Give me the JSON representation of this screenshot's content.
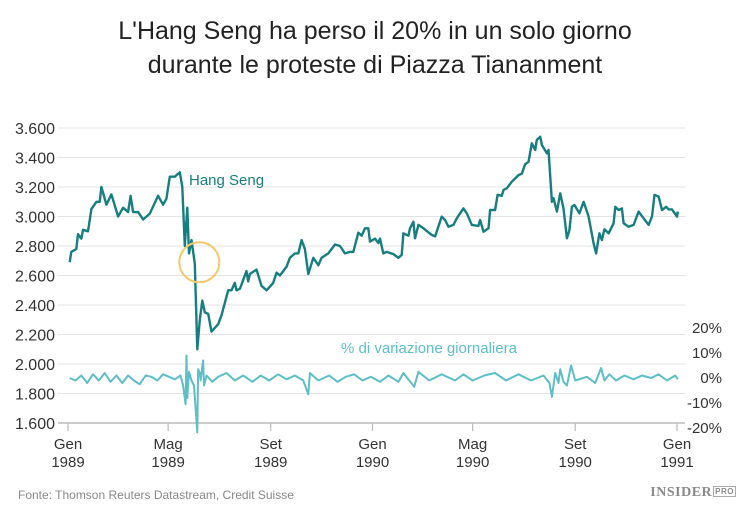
{
  "title_line1": "L'Hang Seng ha perso il 20% in un solo giorno",
  "title_line2": "durante le proteste di Piazza Tiananment",
  "source": "Fonte: Thomson Reuters Datastream, Credit Suisse",
  "logo": {
    "main": "INSIDER",
    "sub": "PRO"
  },
  "colors": {
    "hang_seng": "#177e80",
    "pct_change": "#5dbec7",
    "annotation_circle": "#f5c86a",
    "grid": "#e3e3e3"
  },
  "chart_data": {
    "type": "line",
    "title": "L'Hang Seng ha perso il 20% in un solo giorno durante le proteste di Piazza Tiananment",
    "xlim": [
      "1989-01-01",
      "1991-01-01"
    ],
    "x_ticks": [
      {
        "date": "1989-01-01",
        "month": "Gen",
        "year": "1989"
      },
      {
        "date": "1989-05-01",
        "month": "Mag",
        "year": "1989"
      },
      {
        "date": "1989-09-01",
        "month": "Set",
        "year": "1989"
      },
      {
        "date": "1990-01-01",
        "month": "Gen",
        "year": "1990"
      },
      {
        "date": "1990-05-01",
        "month": "Mag",
        "year": "1990"
      },
      {
        "date": "1990-09-01",
        "month": "Set",
        "year": "1990"
      },
      {
        "date": "1991-01-01",
        "month": "Gen",
        "year": "1991"
      }
    ],
    "y_left": {
      "ylim": [
        1600,
        3600
      ],
      "ticks": [
        "3.600",
        "3.400",
        "3.200",
        "3.000",
        "2.800",
        "2.600",
        "2.400",
        "2.200",
        "2.000",
        "1.800",
        "1.600"
      ],
      "tick_values": [
        3600,
        3400,
        3200,
        3000,
        2800,
        2600,
        2400,
        2200,
        2000,
        1800,
        1600
      ]
    },
    "y_right": {
      "ylim": [
        -20,
        20
      ],
      "ticks": [
        "20%",
        "10%",
        "0%",
        "-10%",
        "-20%"
      ],
      "tick_values": [
        20,
        10,
        0,
        -10,
        -20
      ]
    },
    "grid": true,
    "series": [
      {
        "name": "Hang Seng",
        "axis": "left",
        "points": [
          [
            "1989-01-03",
            2690
          ],
          [
            "1989-01-05",
            2760
          ],
          [
            "1989-01-11",
            2780
          ],
          [
            "1989-01-13",
            2880
          ],
          [
            "1989-01-17",
            2850
          ],
          [
            "1989-01-19",
            2910
          ],
          [
            "1989-01-25",
            2900
          ],
          [
            "1989-01-29",
            3050
          ],
          [
            "1989-02-04",
            3100
          ],
          [
            "1989-02-08",
            3100
          ],
          [
            "1989-02-10",
            3200
          ],
          [
            "1989-02-16",
            3080
          ],
          [
            "1989-02-22",
            3150
          ],
          [
            "1989-03-02",
            3000
          ],
          [
            "1989-03-08",
            3060
          ],
          [
            "1989-03-14",
            3030
          ],
          [
            "1989-03-17",
            3140
          ],
          [
            "1989-03-20",
            3030
          ],
          [
            "1989-03-26",
            3030
          ],
          [
            "1989-04-01",
            2980
          ],
          [
            "1989-04-09",
            3020
          ],
          [
            "1989-04-19",
            3140
          ],
          [
            "1989-04-25",
            3080
          ],
          [
            "1989-04-29",
            3120
          ],
          [
            "1989-05-03",
            3270
          ],
          [
            "1989-05-09",
            3270
          ],
          [
            "1989-05-15",
            3300
          ],
          [
            "1989-05-18",
            3200
          ],
          [
            "1989-05-21",
            2800
          ],
          [
            "1989-05-24",
            3060
          ],
          [
            "1989-05-26",
            2750
          ],
          [
            "1989-05-29",
            2840
          ],
          [
            "1989-06-02",
            2680
          ],
          [
            "1989-06-05",
            2100
          ],
          [
            "1989-06-08",
            2300
          ],
          [
            "1989-06-11",
            2430
          ],
          [
            "1989-06-14",
            2350
          ],
          [
            "1989-06-18",
            2340
          ],
          [
            "1989-06-22",
            2220
          ],
          [
            "1989-06-30",
            2270
          ],
          [
            "1989-07-04",
            2330
          ],
          [
            "1989-07-12",
            2500
          ],
          [
            "1989-07-16",
            2500
          ],
          [
            "1989-07-20",
            2550
          ],
          [
            "1989-07-22",
            2500
          ],
          [
            "1989-07-26",
            2510
          ],
          [
            "1989-08-03",
            2630
          ],
          [
            "1989-08-05",
            2560
          ],
          [
            "1989-08-07",
            2610
          ],
          [
            "1989-08-15",
            2640
          ],
          [
            "1989-08-21",
            2530
          ],
          [
            "1989-08-27",
            2500
          ],
          [
            "1989-09-04",
            2550
          ],
          [
            "1989-09-08",
            2620
          ],
          [
            "1989-09-12",
            2600
          ],
          [
            "1989-09-20",
            2660
          ],
          [
            "1989-09-24",
            2720
          ],
          [
            "1989-09-30",
            2750
          ],
          [
            "1989-10-04",
            2750
          ],
          [
            "1989-10-08",
            2840
          ],
          [
            "1989-10-12",
            2780
          ],
          [
            "1989-10-16",
            2610
          ],
          [
            "1989-10-22",
            2720
          ],
          [
            "1989-10-28",
            2670
          ],
          [
            "1989-11-01",
            2720
          ],
          [
            "1989-11-09",
            2750
          ],
          [
            "1989-11-17",
            2810
          ],
          [
            "1989-11-23",
            2800
          ],
          [
            "1989-11-29",
            2750
          ],
          [
            "1989-12-05",
            2760
          ],
          [
            "1989-12-09",
            2760
          ],
          [
            "1989-12-15",
            2890
          ],
          [
            "1989-12-19",
            2870
          ],
          [
            "1989-12-23",
            2920
          ],
          [
            "1989-12-27",
            2920
          ],
          [
            "1989-12-29",
            2830
          ],
          [
            "1990-01-04",
            2850
          ],
          [
            "1990-01-08",
            2820
          ],
          [
            "1990-01-10",
            2850
          ],
          [
            "1990-01-14",
            2750
          ],
          [
            "1990-01-18",
            2760
          ],
          [
            "1990-01-26",
            2745
          ],
          [
            "1990-02-01",
            2720
          ],
          [
            "1990-02-05",
            2740
          ],
          [
            "1990-02-07",
            2886
          ],
          [
            "1990-02-13",
            2870
          ],
          [
            "1990-02-15",
            2920
          ],
          [
            "1990-02-19",
            2965
          ],
          [
            "1990-02-21",
            2852
          ],
          [
            "1990-02-25",
            2943
          ],
          [
            "1990-03-03",
            2920
          ],
          [
            "1990-03-13",
            2875
          ],
          [
            "1990-03-17",
            2865
          ],
          [
            "1990-03-25",
            2999
          ],
          [
            "1990-03-29",
            2976
          ],
          [
            "1990-04-02",
            2931
          ],
          [
            "1990-04-08",
            2943
          ],
          [
            "1990-04-12",
            2988
          ],
          [
            "1990-04-20",
            3055
          ],
          [
            "1990-04-24",
            3022
          ],
          [
            "1990-04-30",
            2943
          ],
          [
            "1990-05-08",
            2936
          ],
          [
            "1990-05-10",
            2976
          ],
          [
            "1990-05-14",
            2897
          ],
          [
            "1990-05-20",
            2920
          ],
          [
            "1990-05-22",
            3044
          ],
          [
            "1990-05-28",
            3044
          ],
          [
            "1990-05-31",
            3147
          ],
          [
            "1990-06-05",
            3140
          ],
          [
            "1990-06-07",
            3180
          ],
          [
            "1990-06-11",
            3191
          ],
          [
            "1990-06-17",
            3236
          ],
          [
            "1990-06-25",
            3281
          ],
          [
            "1990-06-29",
            3290
          ],
          [
            "1990-07-03",
            3355
          ],
          [
            "1990-07-07",
            3370
          ],
          [
            "1990-07-11",
            3496
          ],
          [
            "1990-07-15",
            3451
          ],
          [
            "1990-07-17",
            3519
          ],
          [
            "1990-07-21",
            3541
          ],
          [
            "1990-07-23",
            3485
          ],
          [
            "1990-07-29",
            3428
          ],
          [
            "1990-07-31",
            3451
          ],
          [
            "1990-08-04",
            3100
          ],
          [
            "1990-08-06",
            3124
          ],
          [
            "1990-08-10",
            3033
          ],
          [
            "1990-08-14",
            3157
          ],
          [
            "1990-08-18",
            3055
          ],
          [
            "1990-08-22",
            2852
          ],
          [
            "1990-08-25",
            2908
          ],
          [
            "1990-08-28",
            3066
          ],
          [
            "1990-08-31",
            3078
          ],
          [
            "1990-09-06",
            3022
          ],
          [
            "1990-09-11",
            3100
          ],
          [
            "1990-09-17",
            2999
          ],
          [
            "1990-09-23",
            2818
          ],
          [
            "1990-09-26",
            2750
          ],
          [
            "1990-09-30",
            2886
          ],
          [
            "1990-10-03",
            2840
          ],
          [
            "1990-10-06",
            2913
          ],
          [
            "1990-10-11",
            2886
          ],
          [
            "1990-10-17",
            2954
          ],
          [
            "1990-10-19",
            3066
          ],
          [
            "1990-10-23",
            3044
          ],
          [
            "1990-10-27",
            3055
          ],
          [
            "1990-10-29",
            2954
          ],
          [
            "1990-11-04",
            2931
          ],
          [
            "1990-11-10",
            2943
          ],
          [
            "1990-11-16",
            3033
          ],
          [
            "1990-11-22",
            2988
          ],
          [
            "1990-11-28",
            2943
          ],
          [
            "1990-12-02",
            2999
          ],
          [
            "1990-12-05",
            3147
          ],
          [
            "1990-12-10",
            3135
          ],
          [
            "1990-12-14",
            3044
          ],
          [
            "1990-12-19",
            3066
          ],
          [
            "1990-12-22",
            3048
          ],
          [
            "1990-12-26",
            3048
          ],
          [
            "1991-01-01",
            2999
          ],
          [
            "1991-01-02",
            3033
          ]
        ]
      },
      {
        "name": "% di variazione giornaliera",
        "axis": "right",
        "points": [
          [
            "1989-01-03",
            0
          ],
          [
            "1989-01-10",
            -1
          ],
          [
            "1989-01-17",
            1
          ],
          [
            "1989-01-24",
            -2
          ],
          [
            "1989-01-31",
            1.5
          ],
          [
            "1989-02-07",
            -1
          ],
          [
            "1989-02-14",
            2
          ],
          [
            "1989-02-21",
            -1.5
          ],
          [
            "1989-02-28",
            1
          ],
          [
            "1989-03-07",
            -2
          ],
          [
            "1989-03-14",
            1
          ],
          [
            "1989-03-21",
            -1
          ],
          [
            "1989-03-28",
            -2.5
          ],
          [
            "1989-04-04",
            1
          ],
          [
            "1989-04-11",
            0.5
          ],
          [
            "1989-04-18",
            -1
          ],
          [
            "1989-04-25",
            1.5
          ],
          [
            "1989-05-02",
            0.5
          ],
          [
            "1989-05-09",
            -0.5
          ],
          [
            "1989-05-16",
            1
          ],
          [
            "1989-05-19",
            -3
          ],
          [
            "1989-05-22",
            -10.5
          ],
          [
            "1989-05-23",
            9
          ],
          [
            "1989-05-24",
            -8
          ],
          [
            "1989-05-26",
            2.5
          ],
          [
            "1989-05-29",
            -1
          ],
          [
            "1989-06-01",
            -3
          ],
          [
            "1989-06-05",
            -21.7
          ],
          [
            "1989-06-06",
            3.5
          ],
          [
            "1989-06-08",
            2
          ],
          [
            "1989-06-09",
            -1
          ],
          [
            "1989-06-12",
            7
          ],
          [
            "1989-06-13",
            -3
          ],
          [
            "1989-06-16",
            1
          ],
          [
            "1989-06-23",
            -1.5
          ],
          [
            "1989-06-30",
            0.5
          ],
          [
            "1989-07-10",
            2
          ],
          [
            "1989-07-20",
            -1
          ],
          [
            "1989-07-30",
            1
          ],
          [
            "1989-08-10",
            -1.5
          ],
          [
            "1989-08-20",
            1
          ],
          [
            "1989-08-30",
            -1
          ],
          [
            "1989-09-10",
            1.5
          ],
          [
            "1989-09-20",
            -0.5
          ],
          [
            "1989-09-30",
            1
          ],
          [
            "1989-10-10",
            -1
          ],
          [
            "1989-10-16",
            -6.5
          ],
          [
            "1989-10-18",
            2
          ],
          [
            "1989-10-28",
            -1
          ],
          [
            "1989-11-10",
            1
          ],
          [
            "1989-11-20",
            -1.5
          ],
          [
            "1989-11-30",
            0.5
          ],
          [
            "1989-12-10",
            1.5
          ],
          [
            "1989-12-20",
            -1
          ],
          [
            "1989-12-30",
            0.5
          ],
          [
            "1990-01-10",
            -1.5
          ],
          [
            "1990-01-20",
            1
          ],
          [
            "1990-02-01",
            -1.5
          ],
          [
            "1990-02-07",
            2
          ],
          [
            "1990-02-20",
            -3.5
          ],
          [
            "1990-02-25",
            2.5
          ],
          [
            "1990-03-10",
            -1
          ],
          [
            "1990-03-25",
            1.5
          ],
          [
            "1990-04-10",
            -1
          ],
          [
            "1990-04-20",
            1.5
          ],
          [
            "1990-05-01",
            -1
          ],
          [
            "1990-05-15",
            1
          ],
          [
            "1990-05-28",
            2
          ],
          [
            "1990-06-10",
            -1
          ],
          [
            "1990-06-25",
            1.5
          ],
          [
            "1990-07-10",
            -1
          ],
          [
            "1990-07-25",
            1
          ],
          [
            "1990-08-01",
            -2
          ],
          [
            "1990-08-04",
            -7.5
          ],
          [
            "1990-08-08",
            2
          ],
          [
            "1990-08-12",
            -2
          ],
          [
            "1990-08-14",
            3.5
          ],
          [
            "1990-08-18",
            -1.5
          ],
          [
            "1990-08-22",
            -3
          ],
          [
            "1990-08-27",
            5
          ],
          [
            "1990-09-01",
            -1
          ],
          [
            "1990-09-15",
            0.5
          ],
          [
            "1990-09-25",
            -2
          ],
          [
            "1990-10-02",
            4
          ],
          [
            "1990-10-06",
            -1
          ],
          [
            "1990-10-12",
            1.5
          ],
          [
            "1990-10-20",
            -1
          ],
          [
            "1990-10-30",
            1
          ],
          [
            "1990-11-10",
            -0.5
          ],
          [
            "1990-11-20",
            1
          ],
          [
            "1990-12-01",
            0
          ],
          [
            "1990-12-10",
            1.5
          ],
          [
            "1990-12-20",
            -1
          ],
          [
            "1990-12-30",
            1
          ],
          [
            "1991-01-02",
            -0.5
          ]
        ]
      }
    ],
    "annotations": [
      {
        "type": "circle",
        "date": "1989-06-05",
        "value": 2690
      }
    ],
    "legend": "inline labels"
  }
}
